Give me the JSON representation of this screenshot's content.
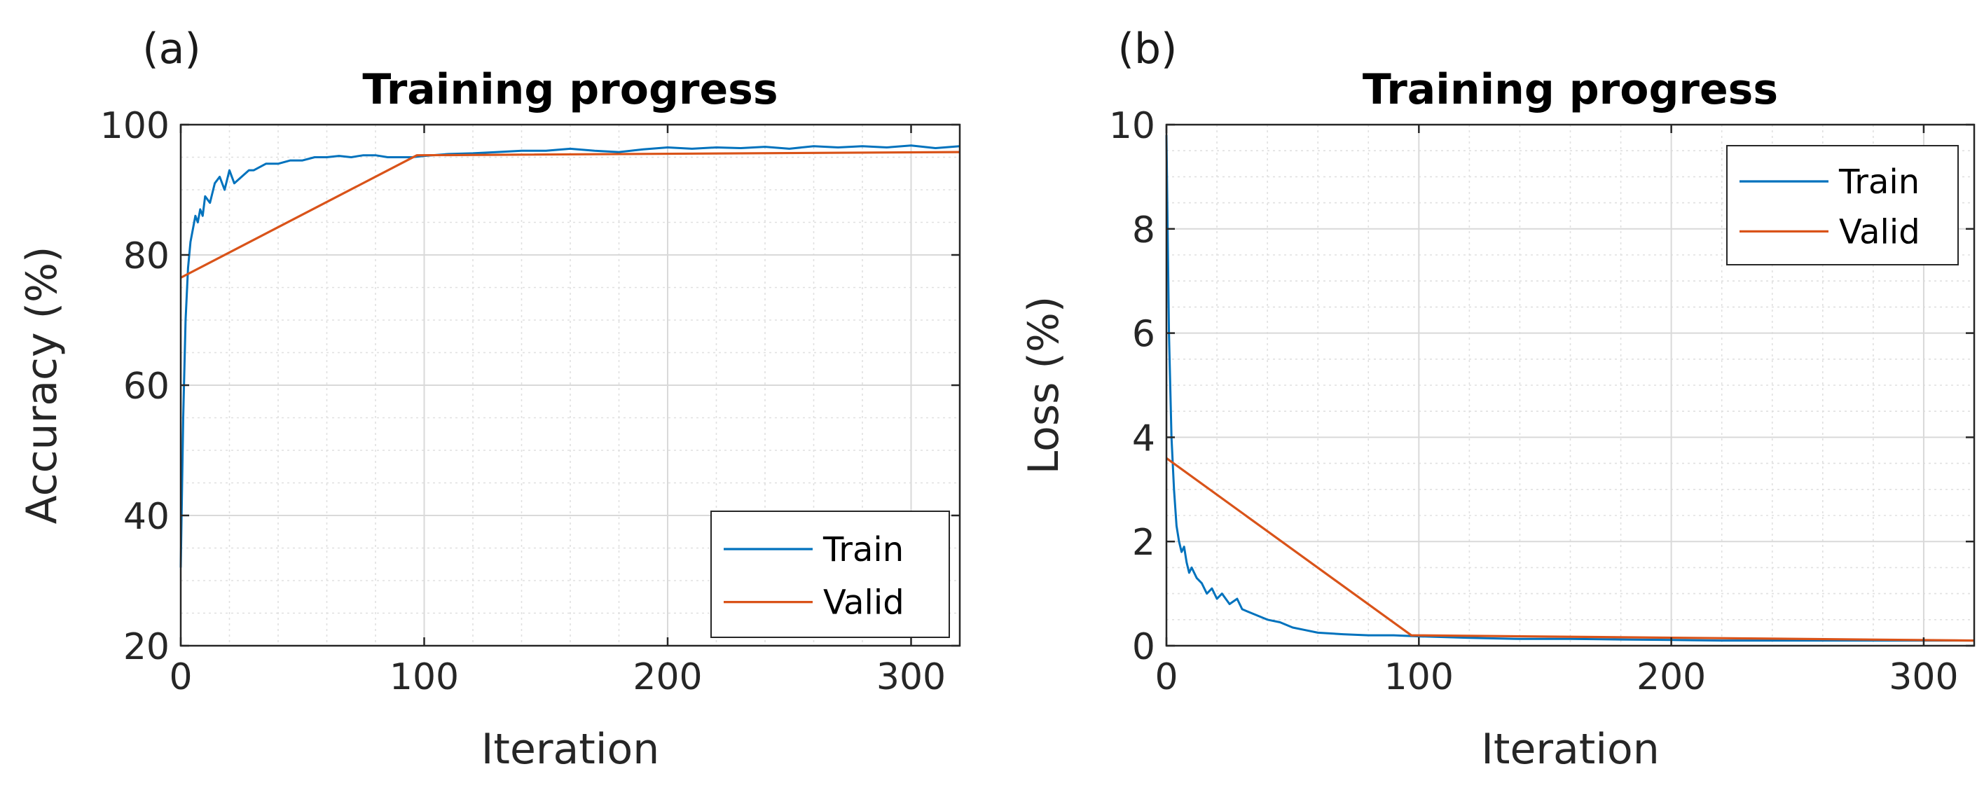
{
  "chart_data": [
    {
      "type": "line",
      "panel_label": "(a)",
      "title": "Training progress",
      "xlabel": "Iteration",
      "ylabel": "Accuracy (%)",
      "xlim": [
        0,
        320
      ],
      "ylim": [
        20,
        100
      ],
      "xticks": [
        0,
        100,
        200,
        300
      ],
      "yticks": [
        20,
        40,
        60,
        80,
        100
      ],
      "xtick_labels": [
        "0",
        "100",
        "200",
        "300"
      ],
      "ytick_labels": [
        "20",
        "40",
        "60",
        "80",
        "100"
      ],
      "grid": true,
      "legend_position": "bottom-right",
      "series": [
        {
          "name": "Train",
          "color": "#0072BD",
          "x": [
            0,
            1,
            2,
            3,
            4,
            5,
            6,
            7,
            8,
            9,
            10,
            12,
            14,
            16,
            18,
            20,
            22,
            25,
            28,
            30,
            35,
            40,
            45,
            50,
            55,
            60,
            65,
            70,
            75,
            80,
            85,
            90,
            95,
            100,
            110,
            120,
            130,
            140,
            150,
            160,
            170,
            180,
            190,
            200,
            210,
            220,
            230,
            240,
            250,
            260,
            270,
            280,
            290,
            300,
            310,
            320
          ],
          "y": [
            32,
            55,
            70,
            78,
            82,
            84,
            86,
            85,
            87,
            86,
            89,
            88,
            91,
            92,
            90,
            93,
            91,
            92,
            93,
            93,
            94,
            94,
            94.5,
            94.5,
            95,
            95,
            95.2,
            95,
            95.3,
            95.3,
            95,
            95,
            95,
            95.2,
            95.5,
            95.6,
            95.8,
            96,
            96,
            96.3,
            96,
            95.8,
            96.2,
            96.5,
            96.3,
            96.5,
            96.4,
            96.6,
            96.3,
            96.7,
            96.5,
            96.7,
            96.5,
            96.8,
            96.4,
            96.7
          ]
        },
        {
          "name": "Valid",
          "color": "#D95319",
          "x": [
            0,
            97,
            320
          ],
          "y": [
            76.5,
            95.3,
            95.8
          ]
        }
      ]
    },
    {
      "type": "line",
      "panel_label": "(b)",
      "title": "Training progress",
      "xlabel": "Iteration",
      "ylabel": "Loss (%)",
      "xlim": [
        0,
        320
      ],
      "ylim": [
        0,
        10
      ],
      "xticks": [
        0,
        100,
        200,
        300
      ],
      "yticks": [
        0,
        2,
        4,
        6,
        8,
        10
      ],
      "xtick_labels": [
        "0",
        "100",
        "200",
        "300"
      ],
      "ytick_labels": [
        "0",
        "2",
        "4",
        "6",
        "8",
        "10"
      ],
      "grid": true,
      "legend_position": "top-right",
      "series": [
        {
          "name": "Train",
          "color": "#0072BD",
          "x": [
            0,
            1,
            2,
            3,
            4,
            5,
            6,
            7,
            8,
            9,
            10,
            12,
            14,
            16,
            18,
            20,
            22,
            25,
            28,
            30,
            35,
            40,
            45,
            50,
            55,
            60,
            70,
            80,
            90,
            100,
            120,
            140,
            160,
            180,
            200,
            220,
            240,
            260,
            280,
            300,
            320
          ],
          "y": [
            9.8,
            6,
            4,
            3,
            2.3,
            2.0,
            1.8,
            1.9,
            1.6,
            1.4,
            1.5,
            1.3,
            1.2,
            1.0,
            1.1,
            0.9,
            1.0,
            0.8,
            0.9,
            0.7,
            0.6,
            0.5,
            0.45,
            0.35,
            0.3,
            0.25,
            0.22,
            0.2,
            0.2,
            0.18,
            0.15,
            0.13,
            0.13,
            0.12,
            0.11,
            0.1,
            0.1,
            0.1,
            0.1,
            0.1,
            0.1
          ]
        },
        {
          "name": "Valid",
          "color": "#D95319",
          "x": [
            0,
            97,
            320
          ],
          "y": [
            3.6,
            0.2,
            0.1
          ]
        }
      ]
    }
  ]
}
